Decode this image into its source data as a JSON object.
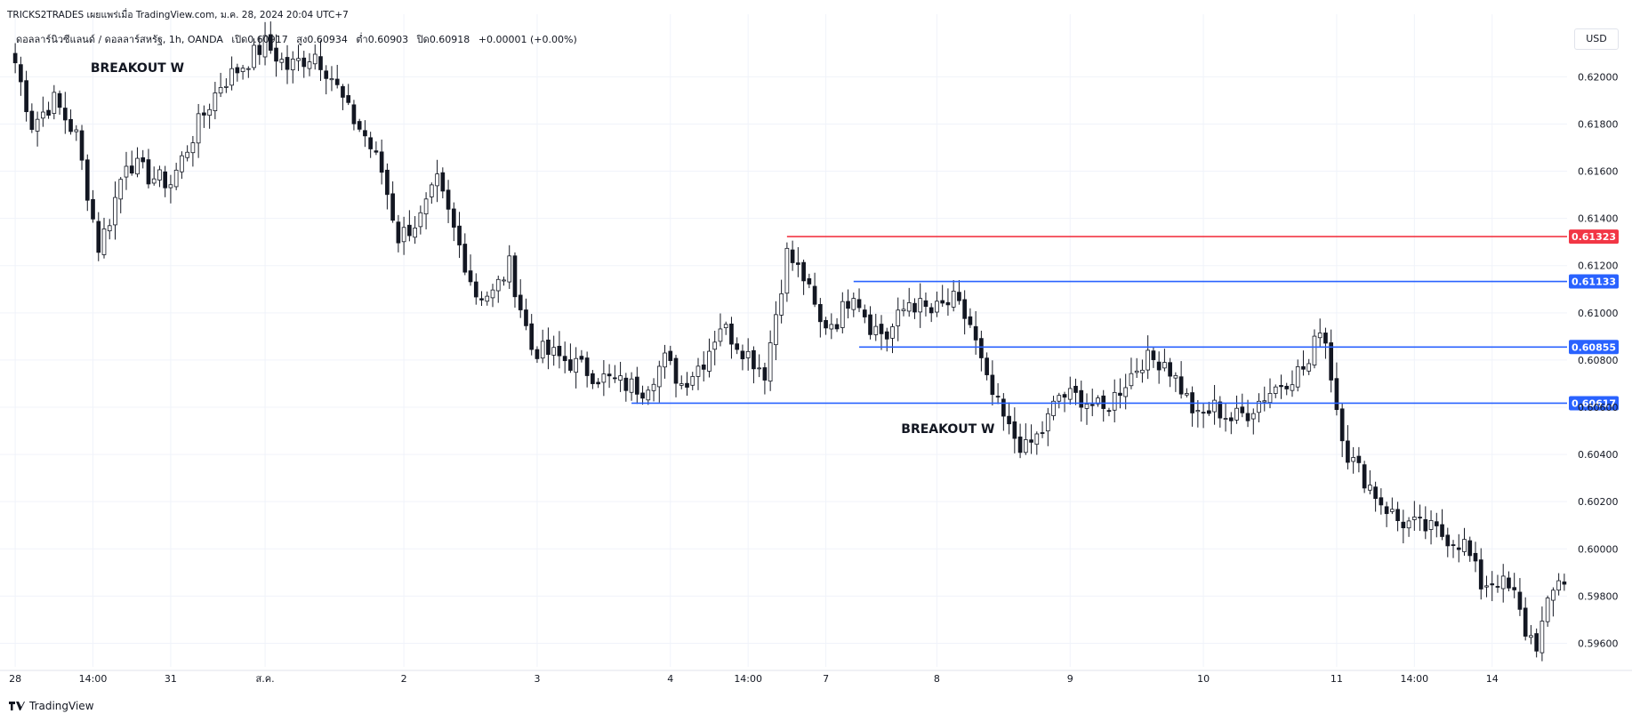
{
  "header": {
    "title": "TRICKS2TRADES เผยแพร่เมื่อ TradingView.com, ม.ค. 28, 2024 20:04 UTC+7"
  },
  "symbol_bar": {
    "name": "ดอลลาร์นิวซีแลนด์ / ดอลลาร์สหรัฐ, 1h, OANDA",
    "open": "เปิด0.60917",
    "high": "สูง0.60934",
    "low": "ต่ำ0.60903",
    "close": "ปิด0.60918",
    "change": "+0.00001 (+0.00%)"
  },
  "currency_button": "USD",
  "footer": {
    "brand": "TradingView"
  },
  "chart_data": {
    "type": "candlestick",
    "symbol": "NZDUSD",
    "timeframe": "1h",
    "ylim": [
      0.595,
      0.6225
    ],
    "y_ticks": [
      "0.62000",
      "0.61800",
      "0.61600",
      "0.61400",
      "0.61200",
      "0.61000",
      "0.60800",
      "0.60600",
      "0.60400",
      "0.60200",
      "0.60000",
      "0.59800",
      "0.59600"
    ],
    "x_ticks": [
      "28",
      "14:00",
      "31",
      "ส.ค.",
      "2",
      "3",
      "4",
      "14:00",
      "7",
      "8",
      "9",
      "10",
      "11",
      "14:00",
      "14"
    ],
    "x_tick_bars": [
      0,
      14,
      28,
      45,
      70,
      94,
      118,
      132,
      146,
      166,
      190,
      214,
      238,
      252,
      266
    ],
    "bar_count": 280,
    "colors": {
      "up": "#ffffff",
      "down": "#131722",
      "wick": "#131722",
      "red_line": "#f23645",
      "blue_line": "#2962ff"
    },
    "horizontal_lines": [
      {
        "price": 0.61323,
        "label": "0.61323",
        "color": "#f23645",
        "start_bar": 139
      },
      {
        "price": 0.61133,
        "label": "0.61133",
        "color": "#2962ff",
        "start_bar": 151
      },
      {
        "price": 0.60855,
        "label": "0.60855",
        "color": "#2962ff",
        "start_bar": 152
      },
      {
        "price": 0.60617,
        "label": "0.60617",
        "color": "#2962ff",
        "start_bar": 111
      }
    ],
    "annotations": [
      {
        "text": "BREAKOUT W",
        "bar": 22,
        "price": 0.6202
      },
      {
        "text": "BREAKOUT W",
        "bar": 168,
        "price": 0.6049
      }
    ],
    "anchors": [
      [
        0,
        0.6206
      ],
      [
        3,
        0.618
      ],
      [
        7,
        0.619
      ],
      [
        11,
        0.6175
      ],
      [
        15,
        0.6128
      ],
      [
        17,
        0.614
      ],
      [
        20,
        0.6165
      ],
      [
        24,
        0.6158
      ],
      [
        28,
        0.6155
      ],
      [
        33,
        0.618
      ],
      [
        37,
        0.6197
      ],
      [
        41,
        0.6205
      ],
      [
        45,
        0.6214
      ],
      [
        49,
        0.6204
      ],
      [
        54,
        0.621
      ],
      [
        57,
        0.62
      ],
      [
        60,
        0.6185
      ],
      [
        63,
        0.6175
      ],
      [
        66,
        0.616
      ],
      [
        69,
        0.6132
      ],
      [
        73,
        0.614
      ],
      [
        76,
        0.6155
      ],
      [
        79,
        0.6135
      ],
      [
        83,
        0.6108
      ],
      [
        86,
        0.6108
      ],
      [
        89,
        0.612
      ],
      [
        93,
        0.6085
      ],
      [
        97,
        0.6082
      ],
      [
        101,
        0.6078
      ],
      [
        105,
        0.6073
      ],
      [
        109,
        0.607
      ],
      [
        113,
        0.6068
      ],
      [
        117,
        0.608
      ],
      [
        120,
        0.607
      ],
      [
        124,
        0.608
      ],
      [
        127,
        0.6095
      ],
      [
        131,
        0.6085
      ],
      [
        135,
        0.6075
      ],
      [
        139,
        0.6125
      ],
      [
        142,
        0.6115
      ],
      [
        145,
        0.6095
      ],
      [
        148,
        0.6097
      ],
      [
        151,
        0.611
      ],
      [
        154,
        0.6095
      ],
      [
        157,
        0.609
      ],
      [
        161,
        0.6105
      ],
      [
        165,
        0.61
      ],
      [
        169,
        0.6105
      ],
      [
        172,
        0.6095
      ],
      [
        175,
        0.607
      ],
      [
        179,
        0.605
      ],
      [
        182,
        0.6042
      ],
      [
        185,
        0.605
      ],
      [
        188,
        0.6065
      ],
      [
        192,
        0.6064
      ],
      [
        196,
        0.6058
      ],
      [
        199,
        0.6068
      ],
      [
        203,
        0.608
      ],
      [
        207,
        0.608
      ],
      [
        210,
        0.6068
      ],
      [
        213,
        0.6055
      ],
      [
        216,
        0.606
      ],
      [
        219,
        0.6055
      ],
      [
        222,
        0.6058
      ],
      [
        225,
        0.6065
      ],
      [
        229,
        0.6072
      ],
      [
        233,
        0.6078
      ],
      [
        235,
        0.6095
      ],
      [
        236,
        0.6088
      ],
      [
        238,
        0.606
      ],
      [
        240,
        0.604
      ],
      [
        243,
        0.603
      ],
      [
        246,
        0.602
      ],
      [
        249,
        0.6012
      ],
      [
        252,
        0.601
      ],
      [
        255,
        0.6008
      ],
      [
        258,
        0.6005
      ],
      [
        261,
        0.6002
      ],
      [
        264,
        0.5985
      ],
      [
        267,
        0.5987
      ],
      [
        270,
        0.598
      ],
      [
        272,
        0.5965
      ],
      [
        274,
        0.596
      ],
      [
        276,
        0.5975
      ],
      [
        278,
        0.5988
      ],
      [
        280,
        0.5985
      ],
      [
        282,
        0.596
      ],
      [
        283,
        0.5975
      ]
    ]
  }
}
